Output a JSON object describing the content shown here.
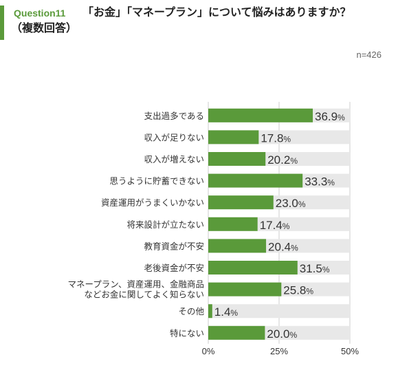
{
  "header": {
    "question_label": "Question11",
    "question_text": "「お金」「マネープラン」について悩みはありますか？",
    "question_sub": "（複数回答）",
    "n_label": "n=426"
  },
  "colors": {
    "accent": "#5a9a3a",
    "bar": "#5a9a3a",
    "track": "#e8e8e8"
  },
  "chart_data": {
    "type": "bar",
    "orientation": "horizontal",
    "categories": [
      "支出過多である",
      "収入が足りない",
      "収入が増えない",
      "思うように貯蓄できない",
      "資産運用がうまくいかない",
      "将来設計が立たない",
      "教育資金が不安",
      "老後資金が不安",
      "マネープラン、資産運用、金融商品\nなどお金に関してよく知らない",
      "その他",
      "特にない"
    ],
    "values": [
      36.9,
      17.8,
      20.2,
      33.3,
      23.0,
      17.4,
      20.4,
      31.5,
      25.8,
      1.4,
      20.0
    ],
    "value_labels": [
      "36.9",
      "17.8",
      "20.2",
      "33.3",
      "23.0",
      "17.4",
      "20.4",
      "31.5",
      "25.8",
      "1.4",
      "20.0"
    ],
    "value_unit": "%",
    "xlim": [
      0,
      50
    ],
    "xticks": [
      "0%",
      "25%",
      "50%"
    ],
    "grid": true
  }
}
